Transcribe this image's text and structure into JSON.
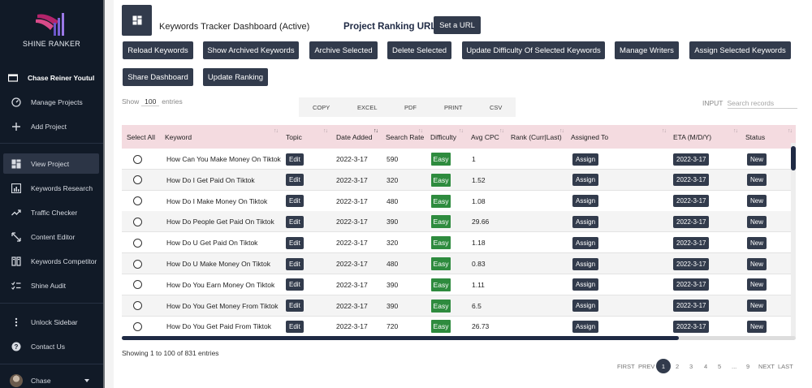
{
  "sidebar": {
    "brand": "SHINE RANKER",
    "user": "Chase Reiner Youtul",
    "items": [
      {
        "label": "Manage Projects",
        "icon": "gauge-icon"
      },
      {
        "label": "Add Project",
        "icon": "plus-icon"
      },
      {
        "label": "View Project",
        "icon": "grid-icon",
        "active": true
      },
      {
        "label": "Keywords Research",
        "icon": "bar-chart-icon"
      },
      {
        "label": "Traffic Checker",
        "icon": "trend-icon"
      },
      {
        "label": "Content Editor",
        "icon": "resize-icon"
      },
      {
        "label": "Keywords Competitor",
        "icon": "book-icon"
      },
      {
        "label": "Shine Audit",
        "icon": "checklist-icon"
      }
    ],
    "unlock": "Unlock Sidebar",
    "contact": "Contact Us",
    "account": "Chase"
  },
  "header": {
    "title": "Keywords Tracker Dashboard (Active)",
    "project_url_label": "Project Ranking URL",
    "set_url": "Set a URL"
  },
  "toolbar": {
    "reload": "Reload Keywords",
    "show_archived": "Show Archived Keywords",
    "archive_selected": "Archive Selected",
    "delete_selected": "Delete Selected",
    "update_difficulty": "Update Difficulty Of Selected Keywords",
    "manage_writers": "Manage Writers",
    "assign_selected": "Assign Selected Keywords",
    "share_dashboard": "Share Dashboard",
    "update_ranking": "Update Ranking"
  },
  "controls": {
    "show": "Show",
    "length": "100",
    "entries": "entries",
    "exports": [
      "COPY",
      "EXCEL",
      "PDF",
      "PRINT",
      "CSV"
    ],
    "input_label": "INPUT",
    "search_placeholder": "Search records"
  },
  "table": {
    "columns": [
      "Select All",
      "Keyword",
      "Topic",
      "Date Added",
      "Search Rate",
      "Difficulty",
      "Avg CPC",
      "Rank (Curr|Last)",
      "Assigned To",
      "ETA (M/D/Y)",
      "Status"
    ],
    "edit_label": "Edit",
    "assign_label": "Assign",
    "rows": [
      {
        "keyword": "How Can You Make Money On Tiktok",
        "date": "2022-3-17",
        "rate": "590",
        "difficulty": "Easy",
        "cpc": "1",
        "eta": "2022-3-17",
        "status": "New"
      },
      {
        "keyword": "How Do I Get Paid On Tiktok",
        "date": "2022-3-17",
        "rate": "320",
        "difficulty": "Easy",
        "cpc": "1.52",
        "eta": "2022-3-17",
        "status": "New"
      },
      {
        "keyword": "How Do I Make Money On Tiktok",
        "date": "2022-3-17",
        "rate": "480",
        "difficulty": "Easy",
        "cpc": "1.08",
        "eta": "2022-3-17",
        "status": "New"
      },
      {
        "keyword": "How Do People Get Paid On Tiktok",
        "date": "2022-3-17",
        "rate": "390",
        "difficulty": "Easy",
        "cpc": "29.66",
        "eta": "2022-3-17",
        "status": "New"
      },
      {
        "keyword": "How Do U Get Paid On Tiktok",
        "date": "2022-3-17",
        "rate": "320",
        "difficulty": "Easy",
        "cpc": "1.18",
        "eta": "2022-3-17",
        "status": "New"
      },
      {
        "keyword": "How Do U Make Money On Tiktok",
        "date": "2022-3-17",
        "rate": "480",
        "difficulty": "Easy",
        "cpc": "0.83",
        "eta": "2022-3-17",
        "status": "New"
      },
      {
        "keyword": "How Do You Earn Money On Tiktok",
        "date": "2022-3-17",
        "rate": "390",
        "difficulty": "Easy",
        "cpc": "1.11",
        "eta": "2022-3-17",
        "status": "New"
      },
      {
        "keyword": "How Do You Get Money From Tiktok",
        "date": "2022-3-17",
        "rate": "390",
        "difficulty": "Easy",
        "cpc": "6.5",
        "eta": "2022-3-17",
        "status": "New"
      },
      {
        "keyword": "How Do You Get Paid From Tiktok",
        "date": "2022-3-17",
        "rate": "720",
        "difficulty": "Easy",
        "cpc": "26.73",
        "eta": "2022-3-17",
        "status": "New"
      }
    ]
  },
  "footer": {
    "info": "Showing 1 to 100 of 831 entries",
    "pagination": {
      "first": "FIRST",
      "prev": "PREV",
      "pages": [
        "1",
        "2",
        "3",
        "4",
        "5",
        "...",
        "9"
      ],
      "current": "1",
      "next": "NEXT",
      "last": "LAST"
    }
  },
  "colors": {
    "accent": "#323b4c",
    "sidebar": "#111a27",
    "header_row": "#f4dbe0",
    "easy": "#2e8b3e"
  }
}
